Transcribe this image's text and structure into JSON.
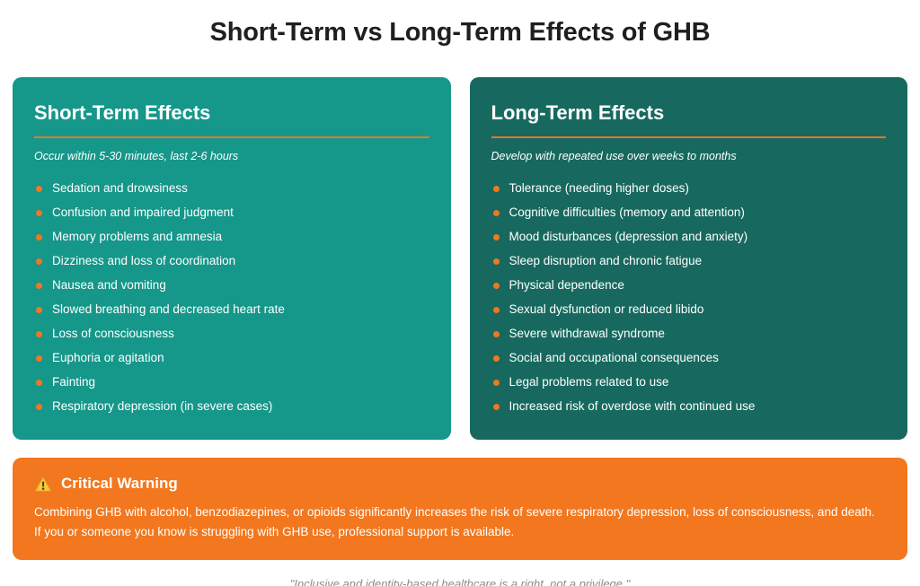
{
  "page": {
    "title": "Short-Term vs Long-Term Effects of GHB",
    "footer_quote": "\"Inclusive and identity-based healthcare is a right, not a privilege.\""
  },
  "colors": {
    "short_term_bg": "#15978A",
    "long_term_bg": "#17695F",
    "accent_orange": "#F2771E",
    "divider_orange": "#E8762A",
    "title_text": "#1F1F1F",
    "card_text": "#FFFFFF",
    "quote_text": "#8C8C8C"
  },
  "short_term_card": {
    "heading": "Short-Term Effects",
    "subtitle": "Occur within 5-30 minutes, last 2-6 hours",
    "items": [
      "Sedation and drowsiness",
      "Confusion and impaired judgment",
      "Memory problems and amnesia",
      "Dizziness and loss of coordination",
      "Nausea and vomiting",
      "Slowed breathing and decreased heart rate",
      "Loss of consciousness",
      "Euphoria or agitation",
      "Fainting",
      "Respiratory depression (in severe cases)"
    ]
  },
  "long_term_card": {
    "heading": "Long-Term Effects",
    "subtitle": "Develop with repeated use over weeks to months",
    "items": [
      "Tolerance (needing higher doses)",
      "Cognitive difficulties (memory and attention)",
      "Mood disturbances (depression and anxiety)",
      "Sleep disruption and chronic fatigue",
      "Physical dependence",
      "Sexual dysfunction or reduced libido",
      "Severe withdrawal syndrome",
      "Social and occupational consequences",
      "Legal problems related to use",
      "Increased risk of overdose with continued use"
    ]
  },
  "warning": {
    "icon_name": "warning-triangle-icon",
    "title": "Critical Warning",
    "body": "Combining GHB with alcohol, benzodiazepines, or opioids significantly increases the risk of severe respiratory depression, loss of consciousness, and death. If you or someone you know is struggling with GHB use, professional support is available."
  }
}
